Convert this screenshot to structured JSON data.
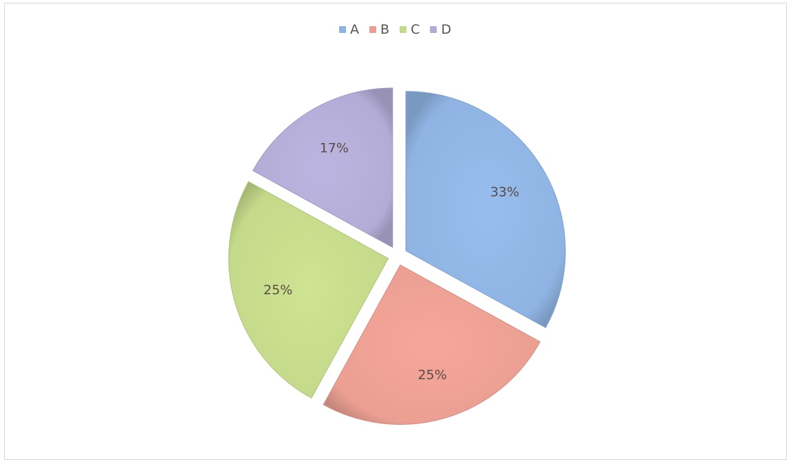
{
  "chart_data": {
    "type": "pie",
    "categories": [
      "A",
      "B",
      "C",
      "D"
    ],
    "values": [
      33,
      25,
      25,
      17
    ],
    "data_labels": [
      "33%",
      "25%",
      "25%",
      "17%"
    ],
    "colors": [
      "#8fb4e3",
      "#ea9f92",
      "#c4d98a",
      "#b3acd6"
    ],
    "legend_position": "top",
    "exploded": true,
    "title": ""
  }
}
